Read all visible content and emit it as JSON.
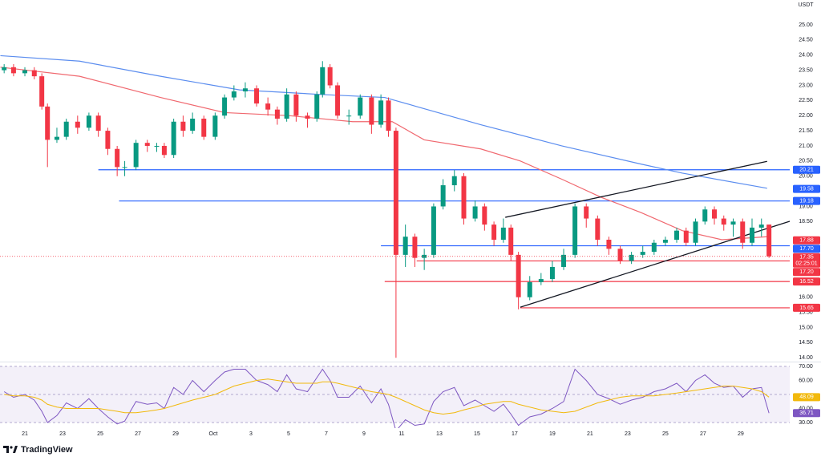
{
  "chart_data": [
    {
      "type": "candlestick",
      "unit": "USDT",
      "x": [
        -1.1,
        -0.6,
        0.0,
        0.5,
        0.9,
        1.2,
        1.7,
        2.2,
        2.8,
        3.4,
        3.9,
        4.4,
        4.9,
        5.3,
        5.9,
        6.5,
        7.0,
        7.4,
        7.9,
        8.4,
        8.9,
        9.5,
        10.1,
        10.6,
        11.1,
        11.7,
        12.3,
        12.9,
        13.4,
        13.9,
        14.4,
        15.0,
        15.5,
        15.8,
        16.2,
        16.6,
        17.2,
        17.8,
        18.4,
        18.9,
        19.3,
        19.7,
        20.2,
        20.7,
        21.2,
        21.7,
        22.2,
        22.8,
        23.3,
        23.9,
        24.4,
        24.9,
        25.4,
        25.8,
        26.2,
        26.8,
        27.4,
        28.0,
        28.6,
        29.2,
        29.8,
        30.4,
        31.0,
        31.6,
        32.2,
        32.8,
        33.4,
        34.0,
        34.6,
        35.1,
        35.6,
        36.1,
        36.6,
        37.1,
        37.6,
        38.1,
        38.6,
        39.1,
        39.5
      ],
      "open": [
        23.5,
        23.6,
        23.4,
        23.5,
        23.3,
        22.3,
        21.2,
        21.3,
        21.8,
        21.6,
        22.0,
        21.5,
        20.9,
        20.3,
        20.3,
        21.1,
        21.0,
        21.0,
        20.7,
        21.8,
        21.5,
        21.9,
        21.3,
        22.0,
        22.6,
        22.8,
        22.9,
        22.4,
        22.2,
        21.9,
        22.7,
        22.0,
        21.9,
        22.7,
        23.6,
        23.0,
        22.0,
        22.0,
        22.6,
        21.7,
        22.5,
        21.5,
        17.4,
        18.0,
        17.3,
        17.4,
        19.0,
        19.7,
        20.0,
        18.6,
        19.0,
        18.4,
        17.9,
        18.3,
        17.4,
        16.0,
        16.5,
        16.6,
        17.0,
        17.4,
        19.0,
        18.6,
        17.9,
        17.6,
        17.2,
        17.4,
        17.5,
        17.8,
        17.9,
        18.2,
        17.8,
        18.5,
        18.9,
        18.6,
        18.4,
        18.5,
        17.8,
        18.3,
        18.4
      ],
      "high": [
        23.7,
        23.7,
        23.6,
        23.6,
        23.4,
        22.4,
        21.6,
        21.9,
        22.0,
        22.1,
        22.1,
        21.6,
        21.0,
        20.5,
        21.2,
        21.2,
        21.1,
        21.1,
        21.9,
        22.0,
        22.1,
        22.0,
        22.1,
        22.7,
        23.0,
        23.1,
        23.0,
        22.6,
        22.3,
        22.9,
        22.8,
        22.1,
        22.8,
        23.8,
        23.7,
        23.1,
        22.2,
        22.7,
        22.7,
        22.7,
        22.6,
        21.6,
        18.4,
        18.1,
        17.6,
        19.1,
        19.9,
        20.2,
        20.1,
        19.2,
        19.1,
        18.5,
        18.6,
        18.4,
        17.5,
        16.7,
        16.8,
        17.2,
        17.6,
        19.1,
        19.1,
        18.7,
        18.0,
        17.7,
        17.5,
        17.7,
        17.9,
        18.0,
        18.3,
        18.3,
        18.6,
        19.0,
        19.0,
        18.7,
        18.6,
        18.6,
        18.6,
        18.6,
        18.4
      ],
      "low": [
        23.4,
        23.3,
        23.3,
        23.2,
        22.2,
        20.3,
        21.1,
        21.2,
        21.4,
        21.5,
        21.3,
        20.7,
        20.0,
        20.0,
        20.2,
        20.8,
        20.8,
        20.6,
        20.6,
        21.3,
        21.4,
        21.2,
        21.2,
        21.9,
        22.5,
        22.6,
        22.3,
        22.0,
        21.7,
        21.8,
        21.8,
        21.6,
        21.8,
        22.6,
        22.9,
        21.9,
        21.7,
        21.9,
        21.4,
        21.6,
        21.3,
        14.0,
        17.0,
        17.0,
        16.9,
        17.3,
        18.9,
        19.5,
        18.4,
        18.5,
        18.2,
        17.7,
        17.8,
        17.2,
        15.6,
        15.9,
        16.4,
        16.5,
        16.9,
        17.3,
        18.3,
        17.7,
        17.4,
        17.1,
        17.1,
        17.3,
        17.4,
        17.7,
        17.8,
        17.7,
        17.7,
        18.4,
        18.4,
        18.2,
        18.0,
        17.6,
        17.7,
        18.0,
        17.3
      ],
      "close": [
        23.6,
        23.4,
        23.5,
        23.3,
        22.3,
        21.2,
        21.3,
        21.8,
        21.6,
        22.0,
        21.5,
        20.9,
        20.3,
        20.3,
        21.1,
        21.0,
        21.0,
        20.7,
        21.8,
        21.5,
        21.9,
        21.3,
        22.0,
        22.6,
        22.8,
        22.9,
        22.4,
        22.2,
        21.9,
        22.7,
        22.0,
        21.9,
        22.7,
        23.6,
        23.0,
        22.0,
        22.0,
        22.6,
        21.7,
        22.5,
        21.5,
        17.4,
        18.0,
        17.3,
        17.4,
        19.0,
        19.7,
        20.0,
        18.6,
        19.0,
        18.4,
        17.9,
        18.3,
        17.4,
        16.0,
        16.5,
        16.6,
        17.0,
        17.4,
        19.0,
        18.6,
        17.9,
        17.6,
        17.2,
        17.4,
        17.5,
        17.8,
        17.9,
        18.2,
        17.8,
        18.5,
        18.9,
        18.6,
        18.4,
        18.5,
        17.8,
        18.3,
        18.4,
        17.35
      ],
      "up_color": "#089981",
      "down_color": "#f23645",
      "xlim": [
        -1.32,
        40.6
      ],
      "ylim": [
        13.9,
        25.82
      ],
      "xticks": [
        {
          "value": 0,
          "label": "21"
        },
        {
          "value": 2,
          "label": "23"
        },
        {
          "value": 4,
          "label": "25"
        },
        {
          "value": 6,
          "label": "27"
        },
        {
          "value": 8,
          "label": "29"
        },
        {
          "value": 10,
          "label": "Oct"
        },
        {
          "value": 12,
          "label": "3"
        },
        {
          "value": 14,
          "label": "5"
        },
        {
          "value": 16,
          "label": "7"
        },
        {
          "value": 18,
          "label": "9"
        },
        {
          "value": 20,
          "label": "11"
        },
        {
          "value": 22,
          "label": "13"
        },
        {
          "value": 24,
          "label": "15"
        },
        {
          "value": 26,
          "label": "17"
        },
        {
          "value": 28,
          "label": "19"
        },
        {
          "value": 30,
          "label": "21"
        },
        {
          "value": 32,
          "label": "23"
        },
        {
          "value": 34,
          "label": "25"
        },
        {
          "value": 36,
          "label": "27"
        },
        {
          "value": 38,
          "label": "29"
        }
      ],
      "yticks": [
        {
          "value": 25,
          "label": "25.00"
        },
        {
          "value": 24.5,
          "label": "24.50"
        },
        {
          "value": 24,
          "label": "24.00"
        },
        {
          "value": 23.5,
          "label": "23.50"
        },
        {
          "value": 23,
          "label": "23.00"
        },
        {
          "value": 22.5,
          "label": "22.50"
        },
        {
          "value": 22,
          "label": "22.00"
        },
        {
          "value": 21.5,
          "label": "21.50"
        },
        {
          "value": 21,
          "label": "21.00"
        },
        {
          "value": 20.5,
          "label": "20.50"
        },
        {
          "value": 20,
          "label": "20.00"
        },
        {
          "value": 19,
          "label": "19.00"
        },
        {
          "value": 18.5,
          "label": "18.50"
        },
        {
          "value": 16,
          "label": "16.00"
        },
        {
          "value": 15.5,
          "label": "15.50"
        },
        {
          "value": 15,
          "label": "15.00"
        },
        {
          "value": 14.5,
          "label": "14.50"
        },
        {
          "value": 14,
          "label": "14.00"
        }
      ],
      "series": [
        {
          "color": "#5b8def",
          "x": [
            -1.3,
            2.9,
            7.2,
            11.4,
            15.7,
            19.1,
            20.8,
            24.2,
            28.5,
            32.7,
            34.9,
            39.4
          ],
          "values": [
            23.98,
            23.8,
            23.3,
            22.85,
            22.7,
            22.6,
            22.3,
            21.7,
            21.0,
            20.4,
            20.1,
            19.6
          ]
        },
        {
          "color": "#f0686f",
          "x": [
            -1.3,
            2.9,
            7.2,
            10.6,
            14.0,
            17.4,
            19.5,
            21.2,
            24.2,
            26.3,
            28.5,
            30.6,
            32.7,
            34.9,
            37.0,
            39.4
          ],
          "values": [
            23.6,
            23.3,
            22.6,
            22.1,
            22.0,
            21.8,
            21.8,
            21.2,
            20.9,
            20.5,
            19.9,
            19.3,
            18.8,
            18.2,
            17.9,
            18.0
          ]
        }
      ],
      "levels": [
        {
          "value": 20.21,
          "label": "20.21",
          "from": 3.9,
          "color": "#2962ff"
        },
        {
          "value": 19.18,
          "label": "19.18",
          "from": 5.0,
          "color": "#2962ff"
        },
        {
          "value": 17.7,
          "label": "17.70",
          "from": 18.9,
          "color": "#2962ff"
        },
        {
          "value": 17.2,
          "label": "17.20",
          "from": 20.8,
          "color": "#f23645"
        },
        {
          "value": 16.52,
          "label": "16.52",
          "from": 19.1,
          "color": "#f23645"
        },
        {
          "value": 15.65,
          "label": "15.65",
          "from": 26.3,
          "color": "#f23645"
        }
      ],
      "price_tags": [
        {
          "value": 19.58,
          "label": "19.58",
          "color": "#2962ff"
        },
        {
          "value": 17.88,
          "label": "17.88",
          "color": "#f23645"
        }
      ],
      "trendlines": [
        {
          "x": [
            25.5,
            39.4
          ],
          "y": [
            18.64,
            20.49
          ]
        },
        {
          "x": [
            26.3,
            40.6
          ],
          "y": [
            15.67,
            18.51
          ]
        }
      ],
      "last_price": {
        "value": 17.35,
        "label": "17.35",
        "countdown": "02:25:01",
        "color": "#f23645"
      }
    },
    {
      "type": "line",
      "ylim": [
        26,
        72
      ],
      "yticks": [
        {
          "value": 70,
          "label": "70.00"
        },
        {
          "value": 60,
          "label": "60.00"
        },
        {
          "value": 40,
          "label": "40.00"
        },
        {
          "value": 30,
          "label": "30.00"
        }
      ],
      "band": [
        30,
        70
      ],
      "guides": [
        70,
        50,
        30
      ],
      "series": [
        {
          "color": "#7e57c2",
          "values": [
            52,
            48,
            50,
            46,
            38,
            30,
            35,
            44,
            40,
            47,
            40,
            34,
            29,
            31,
            45,
            43,
            44,
            40,
            55,
            50,
            60,
            52,
            60,
            66,
            68,
            68,
            60,
            57,
            52,
            64,
            54,
            52,
            62,
            68,
            60,
            48,
            48,
            56,
            44,
            54,
            43,
            24,
            32,
            28,
            29,
            45,
            52,
            55,
            42,
            46,
            42,
            38,
            43,
            36,
            28,
            34,
            36,
            40,
            45,
            68,
            60,
            50,
            47,
            43,
            46,
            48,
            52,
            54,
            58,
            52,
            60,
            64,
            58,
            55,
            56,
            48,
            54,
            55,
            36.71
          ],
          "tag": {
            "value": 36.71,
            "label": "36.71"
          }
        },
        {
          "color": "#f2b90c",
          "values": [
            50,
            49,
            49,
            48,
            46,
            43,
            41,
            40,
            40,
            40,
            40,
            39,
            38,
            37,
            37,
            38,
            39,
            40,
            42,
            44,
            46,
            48,
            50,
            53,
            56,
            58,
            60,
            61,
            60,
            59,
            58,
            58,
            58,
            59,
            59,
            58,
            56,
            54,
            52,
            51,
            50,
            48,
            45,
            42,
            39,
            37,
            36,
            37,
            39,
            41,
            43,
            44,
            45,
            45,
            43,
            41,
            39,
            38,
            37,
            38,
            41,
            44,
            46,
            48,
            49,
            49,
            49,
            50,
            51,
            52,
            53,
            54,
            55,
            56,
            56,
            55,
            54,
            52,
            48.09
          ],
          "tag": {
            "value": 48.09,
            "label": "48.09"
          }
        }
      ]
    }
  ],
  "footer": {
    "brand": "TradingView"
  }
}
